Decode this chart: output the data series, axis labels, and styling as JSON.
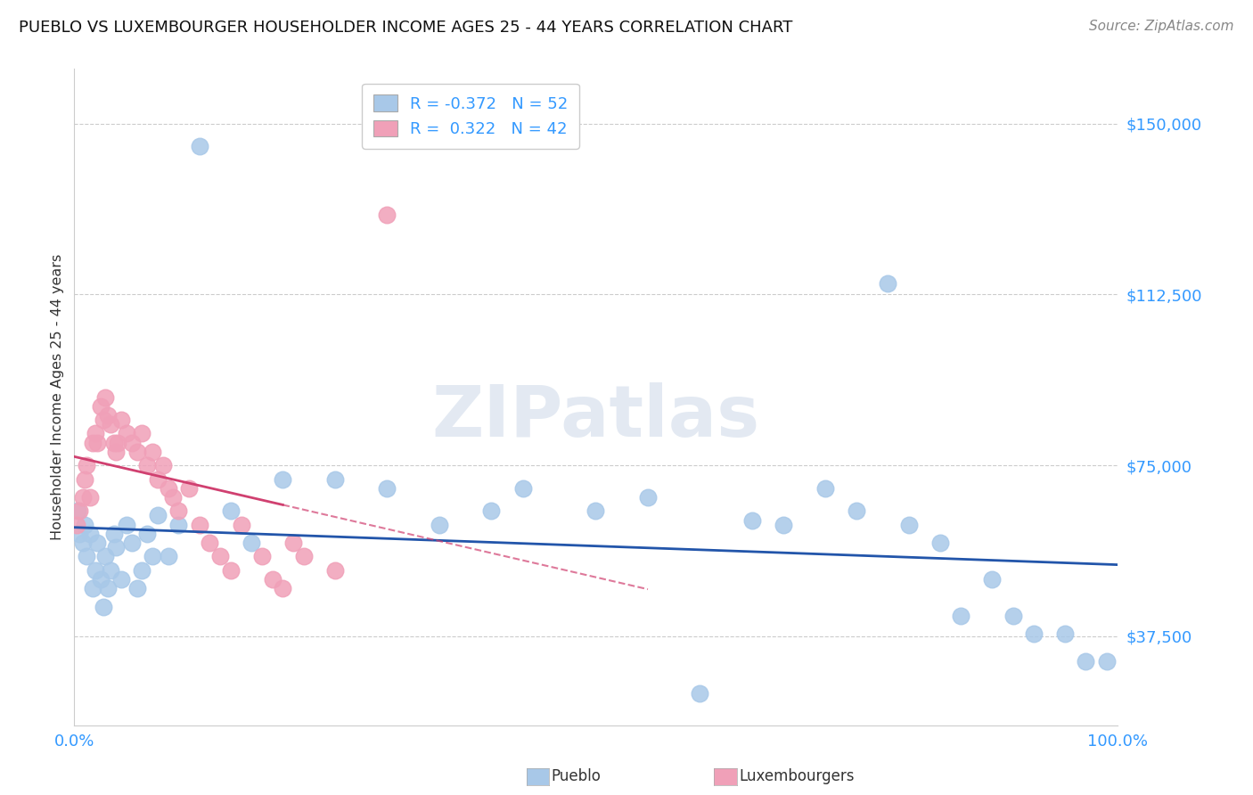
{
  "title": "PUEBLO VS LUXEMBOURGER HOUSEHOLDER INCOME AGES 25 - 44 YEARS CORRELATION CHART",
  "source": "Source: ZipAtlas.com",
  "ylabel": "Householder Income Ages 25 - 44 years",
  "xlim": [
    0,
    100
  ],
  "ylim": [
    18000,
    162000
  ],
  "yticks": [
    37500,
    75000,
    112500,
    150000
  ],
  "ytick_labels": [
    "$37,500",
    "$75,000",
    "$112,500",
    "$150,000"
  ],
  "pueblo_R": -0.372,
  "pueblo_N": 52,
  "lux_R": 0.322,
  "lux_N": 42,
  "pueblo_color": "#a8c8e8",
  "lux_color": "#f0a0b8",
  "pueblo_line_color": "#2255aa",
  "lux_line_color": "#d04070",
  "lux_line_solid_end": 20,
  "lux_line_dashed_end": 55,
  "pueblo_x": [
    0.3,
    0.5,
    0.8,
    1.0,
    1.2,
    1.5,
    1.8,
    2.0,
    2.2,
    2.5,
    2.8,
    3.0,
    3.2,
    3.5,
    3.8,
    4.0,
    4.5,
    5.0,
    5.5,
    6.0,
    6.5,
    7.0,
    7.5,
    8.0,
    9.0,
    10.0,
    12.0,
    15.0,
    17.0,
    20.0,
    25.0,
    30.0,
    35.0,
    40.0,
    43.0,
    50.0,
    55.0,
    60.0,
    65.0,
    68.0,
    72.0,
    75.0,
    78.0,
    80.0,
    83.0,
    85.0,
    88.0,
    90.0,
    92.0,
    95.0,
    97.0,
    99.0
  ],
  "pueblo_y": [
    65000,
    60000,
    58000,
    62000,
    55000,
    60000,
    48000,
    52000,
    58000,
    50000,
    44000,
    55000,
    48000,
    52000,
    60000,
    57000,
    50000,
    62000,
    58000,
    48000,
    52000,
    60000,
    55000,
    64000,
    55000,
    62000,
    145000,
    65000,
    58000,
    72000,
    72000,
    70000,
    62000,
    65000,
    70000,
    65000,
    68000,
    25000,
    63000,
    62000,
    70000,
    65000,
    115000,
    62000,
    58000,
    42000,
    50000,
    42000,
    38000,
    38000,
    32000,
    32000
  ],
  "lux_x": [
    0.2,
    0.5,
    0.8,
    1.0,
    1.2,
    1.5,
    1.8,
    2.0,
    2.2,
    2.5,
    2.8,
    3.0,
    3.2,
    3.5,
    3.8,
    4.0,
    4.2,
    4.5,
    5.0,
    5.5,
    6.0,
    6.5,
    7.0,
    7.5,
    8.0,
    8.5,
    9.0,
    9.5,
    10.0,
    11.0,
    12.0,
    13.0,
    14.0,
    15.0,
    16.0,
    18.0,
    19.0,
    20.0,
    21.0,
    22.0,
    25.0,
    30.0
  ],
  "lux_y": [
    62000,
    65000,
    68000,
    72000,
    75000,
    68000,
    80000,
    82000,
    80000,
    88000,
    85000,
    90000,
    86000,
    84000,
    80000,
    78000,
    80000,
    85000,
    82000,
    80000,
    78000,
    82000,
    75000,
    78000,
    72000,
    75000,
    70000,
    68000,
    65000,
    70000,
    62000,
    58000,
    55000,
    52000,
    62000,
    55000,
    50000,
    48000,
    58000,
    55000,
    52000,
    130000
  ]
}
